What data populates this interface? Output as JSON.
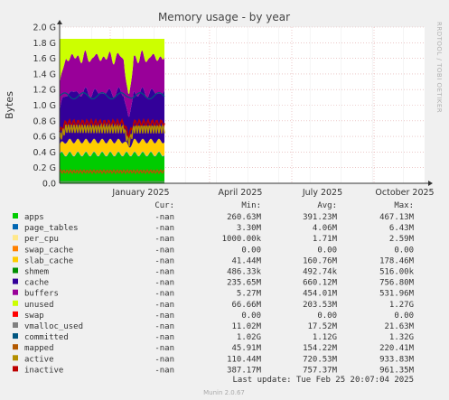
{
  "chart_data": {
    "type": "area",
    "title": "Memory usage - by year",
    "ylabel": "Bytes",
    "watermark": "RRDTOOL / TOBI OETIKER",
    "ylim": [
      0,
      2.0
    ],
    "y_unit": "G",
    "yticks": [
      "0.0",
      "0.2 G",
      "0.4 G",
      "0.6 G",
      "0.8 G",
      "1.0 G",
      "1.2 G",
      "1.4 G",
      "1.6 G",
      "1.8 G",
      "2.0 G"
    ],
    "xticks": [
      "January 2025",
      "April 2025",
      "July 2025",
      "October 2025"
    ],
    "grid": true,
    "legend_columns": [
      "Cur:",
      "Min:",
      "Avg:",
      "Max:"
    ],
    "series": [
      {
        "name": "apps",
        "color": "#00cc00",
        "cur": "-nan",
        "min": "260.63M",
        "avg": "391.23M",
        "max": "467.13M"
      },
      {
        "name": "page_tables",
        "color": "#0066b3",
        "cur": "-nan",
        "min": "3.30M",
        "avg": "4.06M",
        "max": "6.43M"
      },
      {
        "name": "per_cpu",
        "color": "#ffe88a",
        "cur": "-nan",
        "min": "1000.00k",
        "avg": "1.71M",
        "max": "2.59M"
      },
      {
        "name": "swap_cache",
        "color": "#ff8000",
        "cur": "-nan",
        "min": "0.00",
        "avg": "0.00",
        "max": "0.00"
      },
      {
        "name": "slab_cache",
        "color": "#ffcc00",
        "cur": "-nan",
        "min": "41.44M",
        "avg": "160.76M",
        "max": "178.46M"
      },
      {
        "name": "shmem",
        "color": "#008f00",
        "cur": "-nan",
        "min": "486.33k",
        "avg": "492.74k",
        "max": "516.00k"
      },
      {
        "name": "cache",
        "color": "#330099",
        "cur": "-nan",
        "min": "235.65M",
        "avg": "660.12M",
        "max": "756.80M"
      },
      {
        "name": "buffers",
        "color": "#990099",
        "cur": "-nan",
        "min": "5.27M",
        "avg": "454.01M",
        "max": "531.96M"
      },
      {
        "name": "unused",
        "color": "#ccff00",
        "cur": "-nan",
        "min": "66.66M",
        "avg": "203.53M",
        "max": "1.27G"
      },
      {
        "name": "swap",
        "color": "#ff0000",
        "cur": "-nan",
        "min": "0.00",
        "avg": "0.00",
        "max": "0.00"
      },
      {
        "name": "vmalloc_used",
        "color": "#808080",
        "cur": "-nan",
        "min": "11.02M",
        "avg": "17.52M",
        "max": "21.63M"
      },
      {
        "name": "committed",
        "color": "#005580",
        "cur": "-nan",
        "min": "1.02G",
        "avg": "1.12G",
        "max": "1.32G"
      },
      {
        "name": "mapped",
        "color": "#b35900",
        "cur": "-nan",
        "min": "45.91M",
        "avg": "154.22M",
        "max": "220.41M"
      },
      {
        "name": "active",
        "color": "#b38f00",
        "cur": "-nan",
        "min": "110.44M",
        "avg": "720.53M",
        "max": "933.83M"
      },
      {
        "name": "inactive",
        "color": "#bd0000",
        "cur": "-nan",
        "min": "387.17M",
        "avg": "757.37M",
        "max": "961.35M"
      }
    ],
    "last_update": "Last update: Tue Feb 25 20:07:04 2025",
    "footer": "Munin 2.0.67"
  }
}
